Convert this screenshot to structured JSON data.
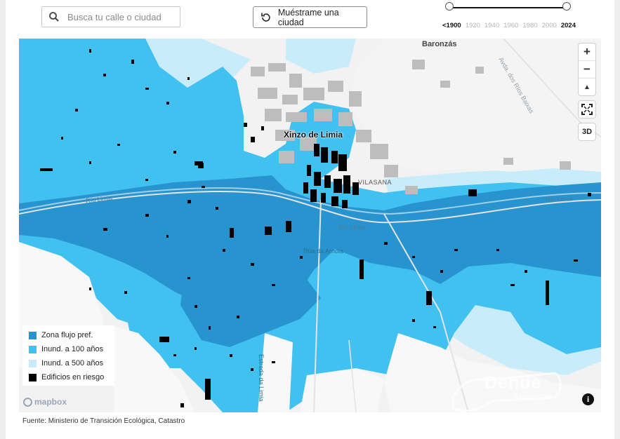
{
  "search": {
    "placeholder": "Busca tu calle o ciudad"
  },
  "show_city_button": {
    "label": "Muéstrame una ciudad"
  },
  "timeline": {
    "labels": [
      "<1900",
      "1920",
      "1940",
      "1960",
      "1980",
      "2000",
      "2024"
    ],
    "selected_start": "<1900",
    "selected_end": "2024"
  },
  "map": {
    "place_labels": {
      "town": "Xinzo de Limia",
      "village1": "Baronzás",
      "village2": "VILASANA"
    },
    "road_labels": {
      "river1": "Río Limia",
      "river2": "Río Limia",
      "river3": "Río Limia",
      "street1": "Rúa da Arnoia",
      "street2": "Avda. dos Ríos Baixas",
      "street3": "Estrada da Limia"
    },
    "controls": {
      "zoom_in": "+",
      "zoom_out": "−",
      "compass": "▲",
      "fullscreen": "fullscreen-icon",
      "three_d": "3D"
    },
    "colors": {
      "preferred_flow": "#2794d0",
      "flood_100": "#41c1f0",
      "flood_500": "#c9ecfb",
      "buildings_risk": "#000000",
      "buildings_urban": "#bdbdbd"
    }
  },
  "legend": {
    "items": [
      {
        "label": "Zona flujo pref.",
        "color": "#2794d0"
      },
      {
        "label": "Inund. a 100 años",
        "color": "#41c1f0"
      },
      {
        "label": "Inund. a 500 años",
        "color": "#c9ecfb"
      },
      {
        "label": "Edificios en riesgo",
        "color": "#000000"
      }
    ]
  },
  "attribution": {
    "mapbox": "mapbox",
    "watermark": "Dende",
    "watermark_sub": "a Limia.com"
  },
  "source_text": "Fuente: Ministerio de Transición Ecológica, Catastro"
}
